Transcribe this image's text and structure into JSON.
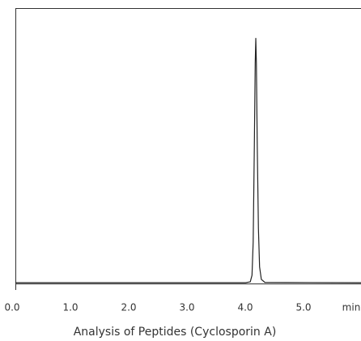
{
  "chart_data": {
    "type": "line",
    "title": "Analysis of Peptides (Cyclosporin A)",
    "x_label": "min",
    "x": [
      0,
      3.95,
      4.03,
      4.06,
      4.08,
      4.1,
      4.115,
      4.125,
      4.135,
      4.15,
      4.17,
      4.19,
      4.22,
      4.28,
      5.93
    ],
    "series": [
      {
        "color": "#222222",
        "values": [
          0.3,
          0.3,
          0.6,
          3,
          15,
          50,
          80,
          89,
          80,
          50,
          20,
          6,
          1.5,
          0.4,
          0.3
        ]
      }
    ],
    "xlim": [
      0,
      5.93
    ],
    "ylim": [
      0,
      100
    ],
    "xticks": [
      {
        "value": 0,
        "label": "0.0"
      },
      {
        "value": 1,
        "label": "1.0"
      },
      {
        "value": 2,
        "label": "2.0"
      },
      {
        "value": 3,
        "label": "3.0"
      },
      {
        "value": 4,
        "label": "4.0"
      },
      {
        "value": 5,
        "label": "5.0"
      }
    ],
    "grid": false
  }
}
